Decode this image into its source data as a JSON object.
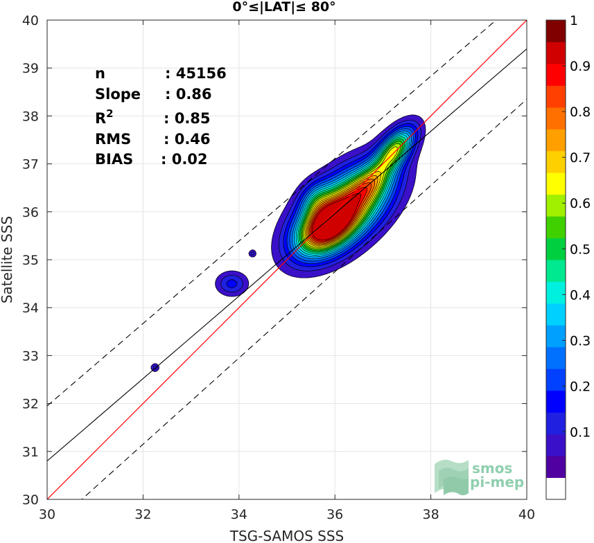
{
  "chart_data": {
    "type": "contour",
    "title": "0°≤|LAT|≤ 80°",
    "xlabel": "TSG-SAMOS SSS",
    "ylabel": "Satellite SSS",
    "xlim": [
      30,
      40
    ],
    "ylim": [
      30,
      40
    ],
    "xticks": [
      "30",
      "32",
      "34",
      "36",
      "38",
      "40"
    ],
    "yticks": [
      "30",
      "31",
      "32",
      "33",
      "34",
      "35",
      "36",
      "37",
      "38",
      "39",
      "40"
    ],
    "grid": true,
    "stats": [
      {
        "label": "n",
        "value": ": 45156"
      },
      {
        "label": "Slope",
        "value": ": 0.86"
      },
      {
        "label": "R",
        "sup": "2",
        "value": ": 0.85"
      },
      {
        "label": "RMS",
        "value": ": 0.46"
      },
      {
        "label": "BIAS",
        "value": ": 0.02"
      }
    ],
    "lines": {
      "identity": {
        "color": "#ff0000",
        "slope": 1,
        "intercept": 0
      },
      "fit": {
        "color": "#000000",
        "points": [
          [
            30,
            30.8
          ],
          [
            40,
            39.4
          ]
        ]
      },
      "upper_bound": {
        "dash": true,
        "points": [
          [
            30,
            31.95
          ],
          [
            40,
            40.55
          ]
        ]
      },
      "lower_bound": {
        "dash": true,
        "points": [
          [
            30,
            29.35
          ],
          [
            40,
            38.35
          ]
        ]
      }
    },
    "density_peaks": [
      {
        "x": 36.2,
        "y": 36.05,
        "sx": 0.62,
        "sy": 0.58,
        "rho": 0.55,
        "amp": 0.86
      },
      {
        "x": 35.8,
        "y": 35.65,
        "sx": 0.38,
        "sy": 0.35,
        "rho": 0.4,
        "amp": 0.63
      },
      {
        "x": 37.25,
        "y": 37.3,
        "sx": 0.28,
        "sy": 0.32,
        "rho": 0.6,
        "amp": 0.6
      },
      {
        "x": 36.75,
        "y": 36.6,
        "sx": 0.3,
        "sy": 0.28,
        "rho": 0.5,
        "amp": 0.3
      },
      {
        "x": 35.6,
        "y": 36.25,
        "sx": 0.22,
        "sy": 0.25,
        "rho": 0.2,
        "amp": 0.2
      },
      {
        "x": 33.85,
        "y": 34.5,
        "sx": 0.22,
        "sy": 0.17,
        "rho": 0,
        "amp": 0.17
      },
      {
        "x": 34.28,
        "y": 35.13,
        "sx": 0.05,
        "sy": 0.05,
        "rho": 0,
        "amp": 0.13
      },
      {
        "x": 32.25,
        "y": 32.75,
        "sx": 0.06,
        "sy": 0.06,
        "rho": 0,
        "amp": 0.13
      }
    ],
    "contour_levels": [
      0.05,
      0.1,
      0.15,
      0.2,
      0.25,
      0.3,
      0.35,
      0.4,
      0.45,
      0.5,
      0.55,
      0.6,
      0.65,
      0.7,
      0.75,
      0.8,
      0.85,
      0.9,
      0.95
    ],
    "colorbar": {
      "ticks": [
        "0.1",
        "0.2",
        "0.3",
        "0.4",
        "0.5",
        "0.6",
        "0.7",
        "0.8",
        "0.9",
        "1"
      ],
      "range": [
        0,
        1
      ],
      "colors": [
        "#ffffff",
        "#5000a0",
        "#3a10c8",
        "#2020e0",
        "#0000ff",
        "#0040ff",
        "#0070ff",
        "#00a0ff",
        "#00d0ff",
        "#00f0e0",
        "#00e890",
        "#00d040",
        "#40d000",
        "#a0f000",
        "#ffff00",
        "#ffd000",
        "#ffa000",
        "#ff7000",
        "#ff4000",
        "#ff0000",
        "#d00000",
        "#800000"
      ]
    },
    "logo": {
      "line1": "smos",
      "line2": "pi-mep"
    }
  }
}
